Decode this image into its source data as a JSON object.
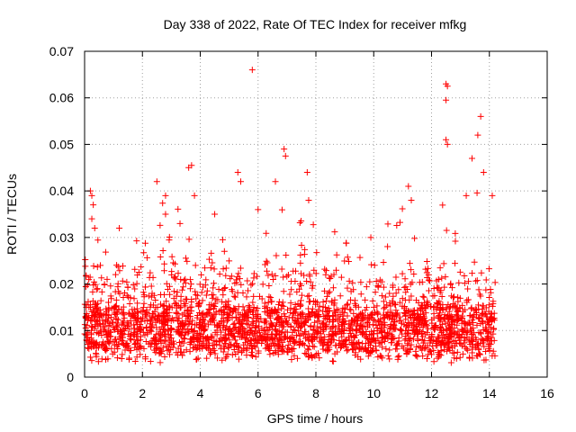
{
  "chart_data": {
    "type": "scatter",
    "title": "Day 338 of 2022, Rate Of TEC Index for receiver mfkg",
    "xlabel": "GPS time / hours",
    "ylabel": "ROTI / TECUs",
    "xlim": [
      0,
      16
    ],
    "ylim": [
      0,
      0.07
    ],
    "xticks": [
      0,
      2,
      4,
      6,
      8,
      10,
      12,
      14,
      16
    ],
    "xtick_labels": [
      "0",
      "2",
      "4",
      "6",
      "8",
      "10",
      "12",
      "14",
      "16"
    ],
    "yticks": [
      0,
      0.01,
      0.02,
      0.03,
      0.04,
      0.05,
      0.06,
      0.07
    ],
    "ytick_labels": [
      "0",
      "0.01",
      "0.02",
      "0.03",
      "0.04",
      "0.05",
      "0.06",
      "0.07"
    ],
    "grid": true,
    "marker": "+",
    "color": "#ff0000",
    "series": [
      {
        "name": "ROTI",
        "x_range": [
          0,
          14.2
        ],
        "notable_points": [
          {
            "x": 0.2,
            "y": 0.04
          },
          {
            "x": 0.25,
            "y": 0.039
          },
          {
            "x": 0.3,
            "y": 0.037
          },
          {
            "x": 0.25,
            "y": 0.034
          },
          {
            "x": 0.35,
            "y": 0.032
          },
          {
            "x": 1.2,
            "y": 0.032
          },
          {
            "x": 2.5,
            "y": 0.042
          },
          {
            "x": 2.8,
            "y": 0.039
          },
          {
            "x": 2.8,
            "y": 0.035
          },
          {
            "x": 3.3,
            "y": 0.033
          },
          {
            "x": 3.6,
            "y": 0.045
          },
          {
            "x": 3.7,
            "y": 0.0455
          },
          {
            "x": 3.8,
            "y": 0.039
          },
          {
            "x": 4.5,
            "y": 0.035
          },
          {
            "x": 5.3,
            "y": 0.044
          },
          {
            "x": 5.4,
            "y": 0.042
          },
          {
            "x": 5.8,
            "y": 0.066
          },
          {
            "x": 6.0,
            "y": 0.036
          },
          {
            "x": 6.6,
            "y": 0.042
          },
          {
            "x": 6.9,
            "y": 0.049
          },
          {
            "x": 6.95,
            "y": 0.0475
          },
          {
            "x": 7.7,
            "y": 0.044
          },
          {
            "x": 7.75,
            "y": 0.038
          },
          {
            "x": 9.9,
            "y": 0.03
          },
          {
            "x": 11.2,
            "y": 0.041
          },
          {
            "x": 11.3,
            "y": 0.038
          },
          {
            "x": 12.5,
            "y": 0.063
          },
          {
            "x": 12.55,
            "y": 0.0625
          },
          {
            "x": 12.5,
            "y": 0.0595
          },
          {
            "x": 12.5,
            "y": 0.051
          },
          {
            "x": 12.55,
            "y": 0.05
          },
          {
            "x": 13.2,
            "y": 0.039
          },
          {
            "x": 13.4,
            "y": 0.047
          },
          {
            "x": 13.6,
            "y": 0.052
          },
          {
            "x": 13.7,
            "y": 0.056
          },
          {
            "x": 13.8,
            "y": 0.044
          },
          {
            "x": 14.1,
            "y": 0.039
          }
        ],
        "typical_band": [
          0.005,
          0.015
        ],
        "min_y": 0.002,
        "max_y": 0.066
      }
    ]
  }
}
